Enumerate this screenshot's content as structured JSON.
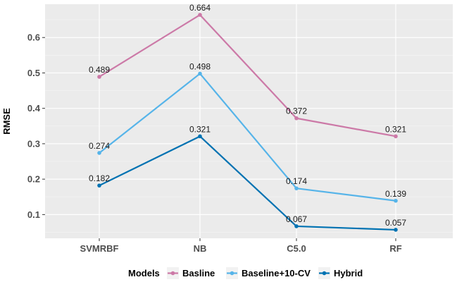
{
  "chart_data": {
    "type": "line",
    "categories": [
      "SVMRBF",
      "NB",
      "C5.0",
      "RF"
    ],
    "ylabel": "RMSE",
    "xlabel": "",
    "ylim": [
      0.033,
      0.694
    ],
    "yticks": [
      0.1,
      0.2,
      0.3,
      0.4,
      0.5,
      0.6
    ],
    "ytick_labels": [
      "0.1",
      "0.2",
      "0.3",
      "0.4",
      "0.5",
      "0.6"
    ],
    "grid": true,
    "legend_title": "Models",
    "legend_position": "bottom",
    "series": [
      {
        "name": "Basline",
        "color": "#cc79a7",
        "values": [
          0.489,
          0.664,
          0.372,
          0.321
        ],
        "labels": [
          "0.489",
          "0.664",
          "0.372",
          "0.321"
        ]
      },
      {
        "name": "Baseline+10-CV",
        "color": "#56b4e9",
        "values": [
          0.274,
          0.498,
          0.174,
          0.139
        ],
        "labels": [
          "0.274",
          "0.498",
          "0.174",
          "0.139"
        ]
      },
      {
        "name": "Hybrid",
        "color": "#0072b2",
        "values": [
          0.182,
          0.321,
          0.067,
          0.057
        ],
        "labels": [
          "0.182",
          "0.321",
          "0.067",
          "0.057"
        ]
      }
    ]
  }
}
